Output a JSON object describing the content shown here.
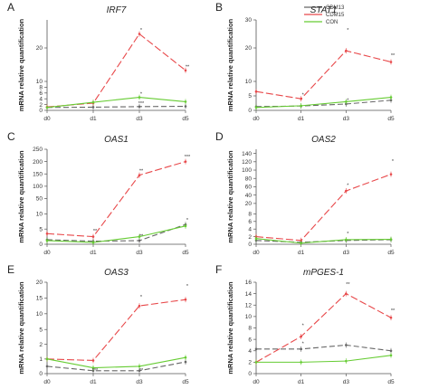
{
  "legend": {
    "position": "top-right",
    "items": [
      {
        "name": "CDM13",
        "color": "#666666"
      },
      {
        "name": "CDM15",
        "color": "#e8484a"
      },
      {
        "name": "CON",
        "color": "#66cc33"
      }
    ]
  },
  "chart_data": [
    {
      "type": "line",
      "letter": "A",
      "title": "IRF7",
      "ylabel": "mRNA relative quantification",
      "x": [
        "d0",
        "d1",
        "d3",
        "d5"
      ],
      "ylim": [
        0,
        30
      ],
      "yticks": [
        0,
        2,
        4,
        6,
        8,
        10,
        20
      ],
      "axis_break": true,
      "series": [
        {
          "name": "CDM13",
          "values": [
            1.0,
            1.1,
            1.3,
            1.4
          ]
        },
        {
          "name": "CDM15",
          "values": [
            1.2,
            2.5,
            25,
            12
          ]
        },
        {
          "name": "CON",
          "values": [
            1.0,
            2.8,
            4.5,
            3.0
          ]
        }
      ],
      "annotations": [
        {
          "x": "d3",
          "y": 25.5,
          "text": "*"
        },
        {
          "x": "d5",
          "y": 12.5,
          "text": "**"
        },
        {
          "x": "d3",
          "y": 4.9,
          "text": "*"
        },
        {
          "x": "d3",
          "y": 1.6,
          "text": "***"
        }
      ]
    },
    {
      "type": "line",
      "letter": "B",
      "title": "STAT1",
      "ylabel": "mRNA relative quantification",
      "x": [
        "d0",
        "d1",
        "d3",
        "d5"
      ],
      "ylim": [
        0,
        30
      ],
      "yticks": [
        0,
        5,
        10,
        20,
        30
      ],
      "axis_break": true,
      "series": [
        {
          "name": "CDM13",
          "values": [
            1.3,
            1.5,
            2.2,
            3.5
          ]
        },
        {
          "name": "CDM15",
          "values": [
            6.5,
            4.0,
            19.0,
            15.0
          ]
        },
        {
          "name": "CON",
          "values": [
            1.0,
            1.6,
            3.0,
            4.5
          ]
        }
      ],
      "annotations": [
        {
          "x": "d3",
          "y": 25.5,
          "text": "*"
        },
        {
          "x": "d5",
          "y": 16.5,
          "text": "**"
        },
        {
          "x": "d1",
          "y": 4.6,
          "text": "*"
        },
        {
          "x": "d3",
          "y": 2.6,
          "text": "*"
        }
      ]
    },
    {
      "type": "line",
      "letter": "C",
      "title": "OAS1",
      "ylabel": "mRNA relative quantification",
      "x": [
        "d0",
        "d1",
        "d3",
        "d5"
      ],
      "ylim": [
        0,
        250
      ],
      "yticks": [
        0,
        5,
        10,
        50,
        100,
        150,
        200,
        250
      ],
      "axis_break": true,
      "series": [
        {
          "name": "CDM13",
          "values": [
            1.5,
            1.0,
            1.2,
            6.5
          ]
        },
        {
          "name": "CDM15",
          "values": [
            3.5,
            2.5,
            145,
            200
          ]
        },
        {
          "name": "CON",
          "values": [
            1.2,
            0.6,
            2.5,
            6.0
          ]
        }
      ],
      "annotations": [
        {
          "x": "d1",
          "y": 3.5,
          "text": "**"
        },
        {
          "x": "d3",
          "y": 152,
          "text": "**"
        },
        {
          "x": "d5",
          "y": 210,
          "text": "***"
        },
        {
          "x": "d3",
          "y": 1.9,
          "text": "**"
        },
        {
          "x": "d5",
          "y": 7.2,
          "text": "*"
        }
      ]
    },
    {
      "type": "line",
      "letter": "D",
      "title": "OAS2",
      "ylabel": "mRNA relative quantification",
      "x": [
        "d0",
        "d1",
        "d3",
        "d5"
      ],
      "ylim": [
        0,
        150
      ],
      "yticks": [
        0,
        2,
        4,
        6,
        8,
        20,
        40,
        60,
        80,
        100,
        120,
        140
      ],
      "axis_break": true,
      "series": [
        {
          "name": "CDM13",
          "values": [
            1.0,
            0.5,
            1.0,
            1.2
          ]
        },
        {
          "name": "CDM15",
          "values": [
            2.0,
            1.0,
            50,
            90
          ]
        },
        {
          "name": "CON",
          "values": [
            1.5,
            0.3,
            1.2,
            1.3
          ]
        }
      ],
      "annotations": [
        {
          "x": "d3",
          "y": 58,
          "text": "*"
        },
        {
          "x": "d5",
          "y": 115,
          "text": "*"
        },
        {
          "x": "d3",
          "y": 2.2,
          "text": "*"
        }
      ]
    },
    {
      "type": "line",
      "letter": "E",
      "title": "OAS3",
      "ylabel": "mRNA relative quantification",
      "x": [
        "d0",
        "d1",
        "d3",
        "d5"
      ],
      "ylim": [
        0,
        20
      ],
      "yticks": [
        0,
        1,
        2,
        5,
        10,
        15,
        20
      ],
      "axis_break": true,
      "series": [
        {
          "name": "CDM13",
          "values": [
            0.5,
            0.2,
            0.2,
            0.8
          ]
        },
        {
          "name": "CDM15",
          "values": [
            1.0,
            0.9,
            12.5,
            14.5
          ]
        },
        {
          "name": "CON",
          "values": [
            1.0,
            0.4,
            0.5,
            1.1
          ]
        }
      ],
      "annotations": [
        {
          "x": "d1",
          "y": 0.05,
          "text": "***"
        },
        {
          "x": "d3",
          "y": 0.05,
          "text": "**"
        },
        {
          "x": "d3",
          "y": 14.5,
          "text": "*"
        },
        {
          "x": "d5",
          "y": 18.0,
          "text": "*"
        }
      ]
    },
    {
      "type": "line",
      "letter": "F",
      "title": "mPGES-1",
      "ylabel": "mRNA relative quantification",
      "x": [
        "d0",
        "d1",
        "d3",
        "d5"
      ],
      "ylim": [
        0,
        16
      ],
      "yticks": [
        0,
        2,
        4,
        6,
        8,
        10,
        12,
        14,
        16
      ],
      "axis_break": false,
      "series": [
        {
          "name": "CDM13",
          "values": [
            4.3,
            4.3,
            5.0,
            4.0
          ]
        },
        {
          "name": "CDM15",
          "values": [
            2.0,
            6.5,
            14.0,
            9.8
          ]
        },
        {
          "name": "CON",
          "values": [
            2.0,
            2.0,
            2.2,
            3.2
          ]
        }
      ],
      "annotations": [
        {
          "x": "d1",
          "y": 8.0,
          "text": "*"
        },
        {
          "x": "d3",
          "y": 15.2,
          "text": "**"
        },
        {
          "x": "d5",
          "y": 10.6,
          "text": "**"
        },
        {
          "x": "d1",
          "y": 4.8,
          "text": "*"
        }
      ]
    }
  ]
}
